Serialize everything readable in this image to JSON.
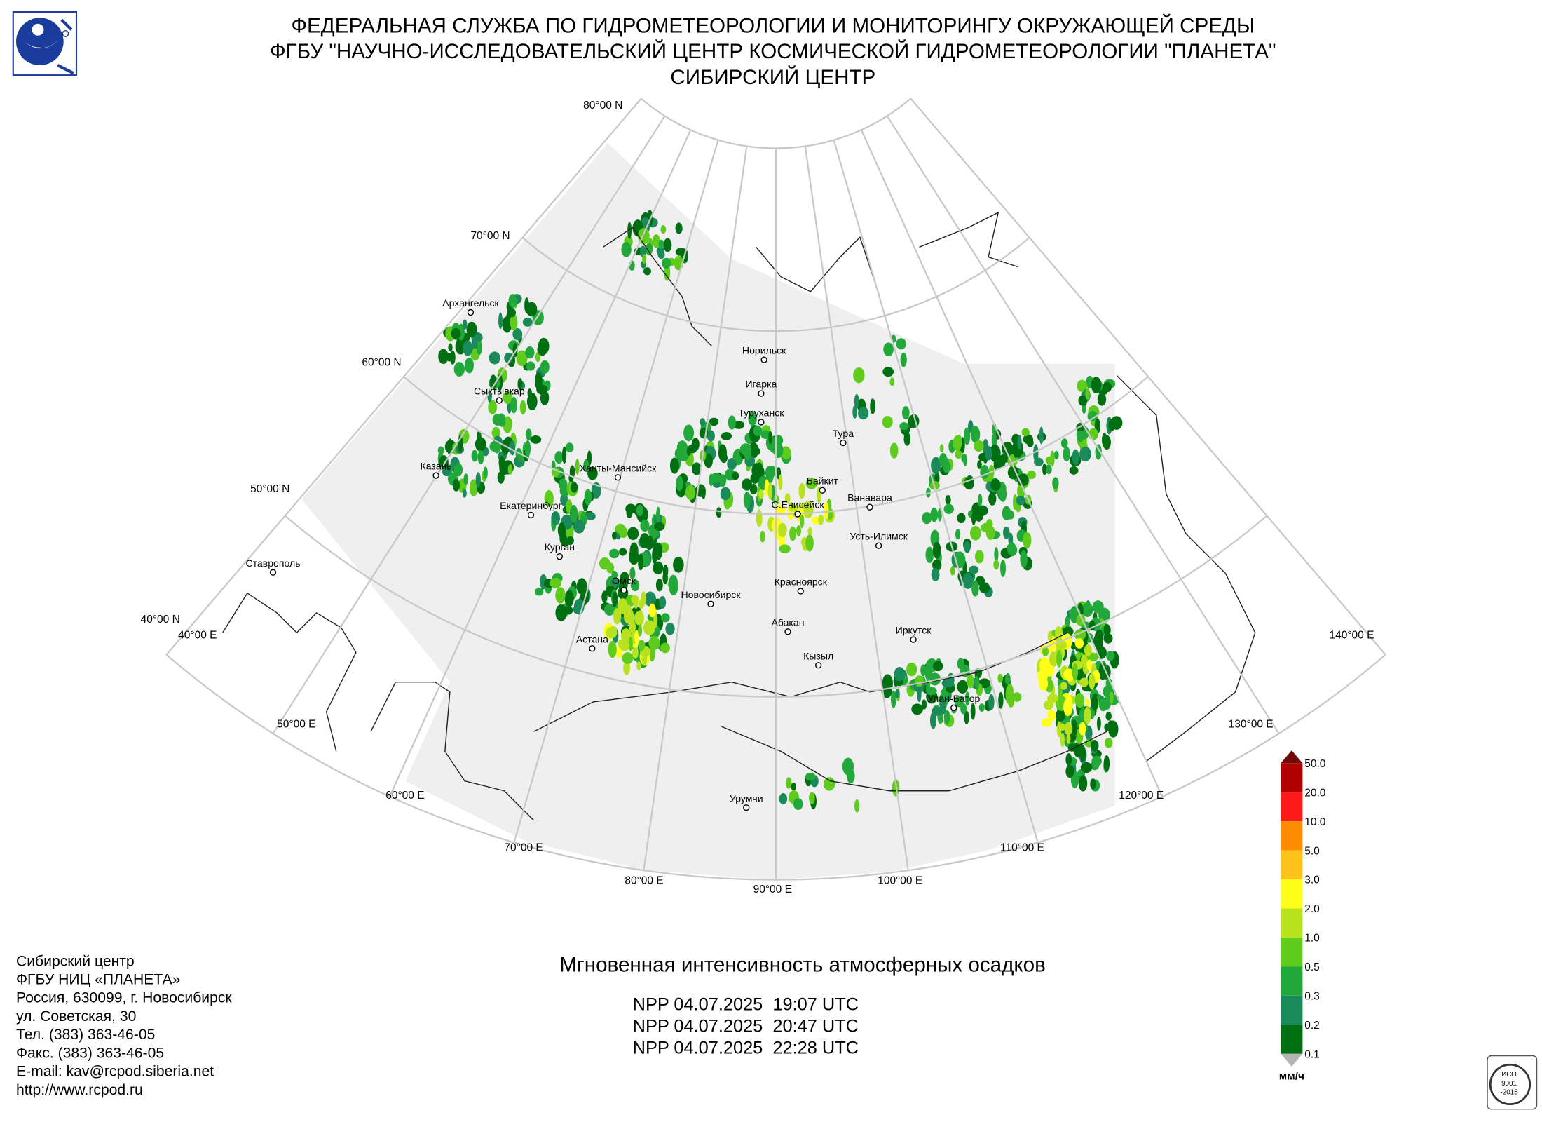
{
  "header": {
    "lines": [
      "ФЕДЕРАЛЬНАЯ СЛУЖБА ПО ГИДРОМЕТЕОРОЛОГИИ И МОНИТОРИНГУ ОКРУЖАЮЩЕЙ СРЕДЫ",
      "ФГБУ \"НАУЧНО-ИССЛЕДОВАТЕЛЬСКИЙ ЦЕНТР КОСМИЧЕСКОЙ ГИДРОМЕТЕОРОЛОГИИ \"ПЛАНЕТА\"",
      "СИБИРСКИЙ ЦЕНТР"
    ]
  },
  "map": {
    "latitude_labels": [
      "80°00 N",
      "70°00 N",
      "60°00 N",
      "50°00 N",
      "40°00 N"
    ],
    "longitude_labels": [
      "40°00 E",
      "50°00 E",
      "60°00 E",
      "70°00 E",
      "80°00 E",
      "90°00 E",
      "100°00 E",
      "110°00 E",
      "120°00 E",
      "130°00 E",
      "140°00 E"
    ],
    "cities": [
      "Архангельск",
      "Сыктывкар",
      "Казань",
      "Екатеринбург",
      "Курган",
      "Ставрополь",
      "Ханты-Мансийск",
      "Омск",
      "Астана",
      "Новосибирск",
      "Норильск",
      "Игарка",
      "Туруханск",
      "Тура",
      "Байкит",
      "С.Енисейск",
      "Ванавара",
      "Усть-Илимск",
      "Красноярск",
      "Абакан",
      "Кызыл",
      "Иркутск",
      "Улан-Батор",
      "Урумчи"
    ]
  },
  "legend": {
    "labels": [
      "50.0",
      "20.0",
      "10.0",
      "5.0",
      "3.0",
      "2.0",
      "1.0",
      "0.5",
      "0.3",
      "0.2",
      "0.1"
    ],
    "colors": [
      "#b00000",
      "#ff1a1a",
      "#ff8c00",
      "#ffc21a",
      "#ffff1a",
      "#b8e21e",
      "#5fcb1c",
      "#22a83a",
      "#1a8a5a",
      "#006f12"
    ],
    "over_color": "#6e0a0a",
    "under_color": "#b4b4b4",
    "unit": "мм/ч"
  },
  "product": {
    "title": "Мгновенная интенсивность атмосферных осадков",
    "passes": [
      "NPP 04.07.2025  19:07 UTC",
      "NPP 04.07.2025  20:47 UTC",
      "NPP 04.07.2025  22:28 UTC"
    ]
  },
  "address": {
    "lines": [
      "Сибирский центр",
      "ФГБУ НИЦ «ПЛАНЕТА»",
      "Россия, 630099, г. Новосибирск",
      "ул. Советская, 30",
      "Тел. (383) 363-46-05",
      "Факс. (383) 363-46-05",
      "E-mail: kav@rcpod.siberia.net",
      "http://www.rcpod.ru"
    ]
  },
  "iso_badge": {
    "lines": [
      "ИСО",
      "9001",
      "-2015"
    ]
  }
}
